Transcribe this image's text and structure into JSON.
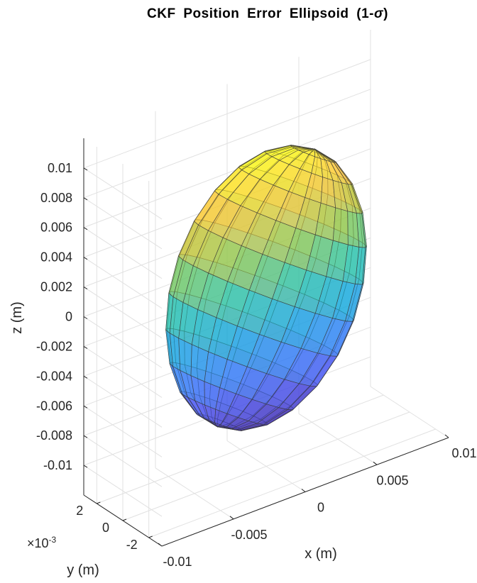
{
  "chart_data": {
    "type": "surface3d",
    "title": "CKF  Position  Error  Ellipsoid  (1-",
    "title_symbol": "σ",
    "title_end": ")",
    "xlabel": "x (m)",
    "ylabel": "y (m)",
    "zlabel": "z (m)",
    "x_ticks": [
      "-0.01",
      "-0.005",
      "0",
      "0.005",
      "0.01"
    ],
    "y_ticks": [
      "-2",
      "0",
      "2"
    ],
    "y_exponent_base": "×10",
    "y_exponent": "-3",
    "z_ticks": [
      "-0.01",
      "-0.008",
      "-0.006",
      "-0.004",
      "-0.002",
      "0",
      "0.002",
      "0.004",
      "0.006",
      "0.008",
      "0.01"
    ],
    "x_range": [
      -0.01,
      0.01
    ],
    "y_range": [
      -0.003,
      0.003
    ],
    "z_range": [
      -0.012,
      0.012
    ],
    "grid": true,
    "colormap": "parula",
    "face_alpha": 0.6
  }
}
